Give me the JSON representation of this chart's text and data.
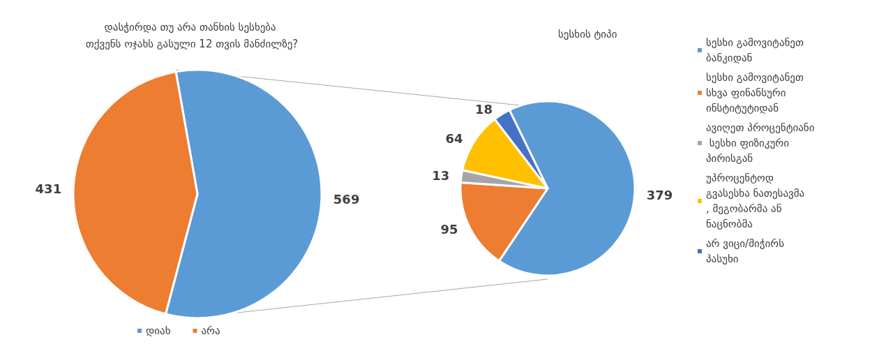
{
  "chart_data": [
    {
      "type": "pie",
      "title": "დასჭირდა თუ არა თანხის სესხება თქვენს ოჯახს გასული 12 თვის მანძილზე?",
      "categories": [
        "დიახ",
        "არა"
      ],
      "values": [
        569,
        431
      ],
      "colors": [
        "#5b9bd5",
        "#ed7d31"
      ],
      "data_labels": true,
      "legend": "bottom"
    },
    {
      "type": "pie",
      "title": "სესხის ტიპი",
      "categories": [
        "სესხი გამოვიტანეთ ბანკიდან",
        "სესხი გამოვიტანეთ სხვა ფინანსური ინსტიტუტიდან",
        "ავიღეთ პროცენტიანი სესხი ფიზიკური პირისგან",
        "უპროცენტოდ გვასესხა ნათესავმა, მეგობარმა ან ნაცნობმა",
        "არ ვიცი/მიჭირს პასუხი"
      ],
      "values": [
        379,
        95,
        13,
        64,
        18
      ],
      "colors": [
        "#5b9bd5",
        "#ed7d31",
        "#a5a5a5",
        "#ffc000",
        "#4472c4"
      ],
      "data_labels": true,
      "legend": "right"
    }
  ]
}
